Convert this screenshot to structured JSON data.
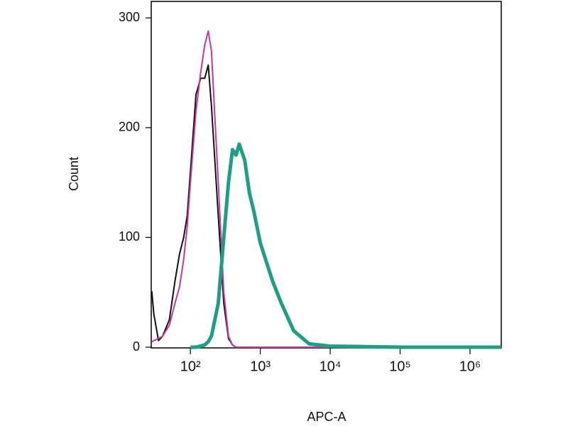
{
  "chart_data": {
    "type": "line",
    "x_label": "APC-A",
    "y_label": "Count",
    "log_x": true,
    "x": [
      28,
      30,
      35,
      40,
      50,
      60,
      70,
      80,
      90,
      100,
      120,
      140,
      160,
      180,
      200,
      250,
      300,
      350,
      400,
      450,
      500,
      600,
      700,
      800,
      1000,
      1500,
      2000,
      3000,
      5000,
      10000,
      100000,
      1000000,
      2800000
    ],
    "series": [
      {
        "color": "#111111",
        "width": 2,
        "values": [
          51,
          30,
          6,
          10,
          25,
          60,
          85,
          100,
          120,
          160,
          230,
          245,
          245,
          257,
          220,
          120,
          40,
          8,
          2,
          0,
          0,
          0,
          0,
          0,
          0,
          0,
          0,
          0,
          0,
          0,
          0,
          0,
          0
        ]
      },
      {
        "color": "#c2399b",
        "width": 2,
        "values": [
          5,
          6,
          8,
          10,
          20,
          40,
          55,
          80,
          110,
          150,
          215,
          250,
          275,
          288,
          270,
          150,
          50,
          10,
          2,
          0,
          0,
          0,
          0,
          0,
          0,
          0,
          0,
          0,
          0,
          0,
          0,
          0,
          0
        ]
      },
      {
        "color": "#1f9e85",
        "width": 5,
        "values": [
          null,
          null,
          null,
          null,
          null,
          null,
          null,
          null,
          null,
          0,
          0,
          1,
          2,
          5,
          10,
          40,
          100,
          150,
          180,
          175,
          185,
          170,
          140,
          125,
          95,
          60,
          40,
          15,
          3,
          1,
          0,
          0,
          0
        ]
      }
    ],
    "xlim": [
      27.5,
      2800000
    ],
    "xticks": [
      {
        "value": 100,
        "label": "10²"
      },
      {
        "value": 1000,
        "label": "10³"
      },
      {
        "value": 10000,
        "label": "10⁴"
      },
      {
        "value": 100000,
        "label": "10⁵"
      },
      {
        "value": 1000000,
        "label": "10⁶"
      }
    ],
    "ylim": [
      0,
      315
    ],
    "yticks": [
      0,
      100,
      200,
      300
    ]
  }
}
